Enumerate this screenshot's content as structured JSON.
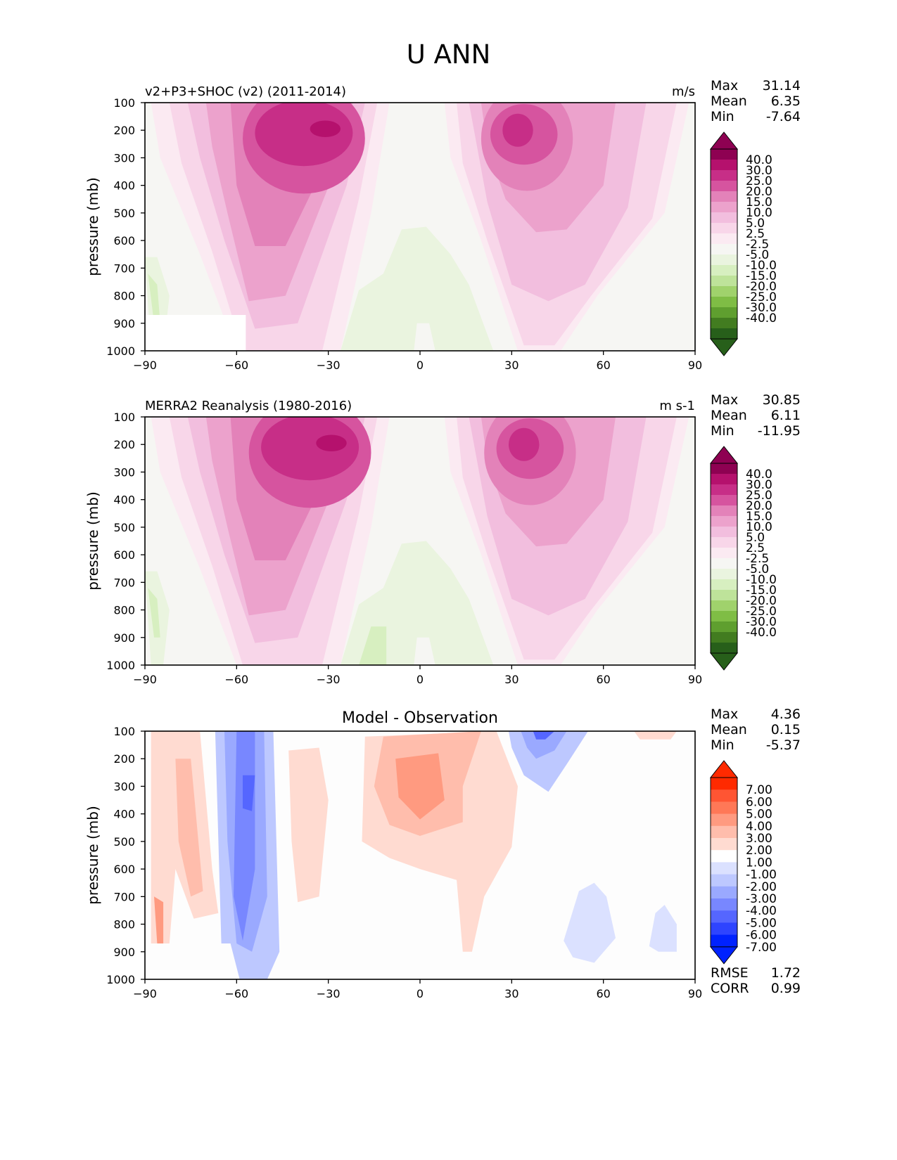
{
  "title": "U ANN",
  "stat_labels": {
    "max": "Max",
    "mean": "Mean",
    "min": "Min",
    "rmse": "RMSE",
    "corr": "CORR"
  },
  "panels": [
    {
      "id": "test",
      "title_left": "v2+P3+SHOC (v2) (2011-2014)",
      "title_right": "m/s",
      "stats": {
        "max": "31.14",
        "mean": "6.35",
        "min": "-7.64"
      }
    },
    {
      "id": "ref",
      "title_left": "MERRA2 Reanalysis (1980-2016)",
      "title_right": "m s-1",
      "stats": {
        "max": "30.85",
        "mean": "6.11",
        "min": "-11.95"
      }
    },
    {
      "id": "diff",
      "title_center": "Model - Observation",
      "stats": {
        "max": "4.36",
        "mean": "0.15",
        "min": "-5.37",
        "rmse": "1.72",
        "corr": "0.99"
      }
    }
  ],
  "chart_data": [
    {
      "type": "heatmap",
      "title": "v2+P3+SHOC (v2) (2011-2014)",
      "units": "m/s",
      "xlabel": "",
      "ylabel": "pressure (mb)",
      "xlim": [
        -90,
        90
      ],
      "ylim": [
        1000,
        100
      ],
      "xticks": [
        "−90",
        "−60",
        "−30",
        "0",
        "30",
        "60",
        "90"
      ],
      "yticks": [
        "100",
        "200",
        "300",
        "400",
        "500",
        "600",
        "700",
        "800",
        "900",
        "1000"
      ],
      "colorbar_levels": [
        "40.0",
        "30.0",
        "25.0",
        "20.0",
        "15.0",
        "10.0",
        "5.0",
        "2.5",
        "-2.5",
        "-5.0",
        "-10.0",
        "-15.0",
        "-20.0",
        "-25.0",
        "-30.0",
        "-40.0"
      ],
      "jets": [
        {
          "lat": -35,
          "pressure": 200,
          "max": 31.14
        },
        {
          "lat": 33,
          "pressure": 200,
          "max": 27
        }
      ]
    },
    {
      "type": "heatmap",
      "title": "MERRA2 Reanalysis (1980-2016)",
      "units": "m s-1",
      "xlabel": "",
      "ylabel": "pressure (mb)",
      "xlim": [
        -90,
        90
      ],
      "ylim": [
        1000,
        100
      ],
      "xticks": [
        "−90",
        "−60",
        "−30",
        "0",
        "30",
        "60",
        "90"
      ],
      "yticks": [
        "100",
        "200",
        "300",
        "400",
        "500",
        "600",
        "700",
        "800",
        "900",
        "1000"
      ],
      "colorbar_levels": [
        "40.0",
        "30.0",
        "25.0",
        "20.0",
        "15.0",
        "10.0",
        "5.0",
        "2.5",
        "-2.5",
        "-5.0",
        "-10.0",
        "-15.0",
        "-20.0",
        "-25.0",
        "-30.0",
        "-40.0"
      ],
      "jets": [
        {
          "lat": -30,
          "pressure": 200,
          "max": 30.85
        },
        {
          "lat": 35,
          "pressure": 200,
          "max": 27
        }
      ]
    },
    {
      "type": "heatmap",
      "title": "Model - Observation",
      "xlabel": "",
      "ylabel": "pressure (mb)",
      "xlim": [
        -90,
        90
      ],
      "ylim": [
        1000,
        100
      ],
      "xticks": [
        "−90",
        "−60",
        "−30",
        "0",
        "30",
        "60",
        "90"
      ],
      "yticks": [
        "100",
        "200",
        "300",
        "400",
        "500",
        "600",
        "700",
        "800",
        "900",
        "1000"
      ],
      "colorbar_levels": [
        "7.00",
        "6.00",
        "5.00",
        "4.00",
        "3.00",
        "2.00",
        "1.00",
        "-1.00",
        "-2.00",
        "-3.00",
        "-4.00",
        "-5.00",
        "-6.00",
        "-7.00"
      ]
    }
  ]
}
